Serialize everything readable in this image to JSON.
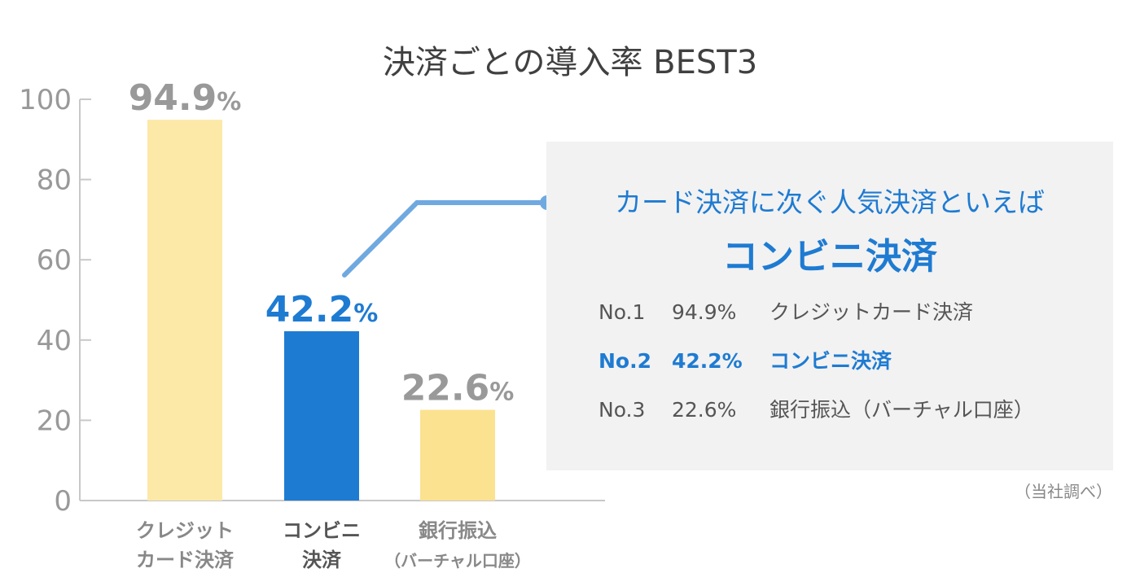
{
  "chart_data": {
    "type": "bar",
    "title": "決済ごとの導入率 BEST3",
    "categories": [
      [
        "クレジット",
        "カード決済"
      ],
      [
        "コンビニ",
        "決済"
      ],
      [
        "銀行振込",
        "（バーチャル口座）"
      ]
    ],
    "values": [
      94.9,
      42.2,
      22.6
    ],
    "value_labels": [
      "94.9",
      "42.2",
      "22.6"
    ],
    "value_unit": "%",
    "ylim": [
      0,
      100
    ],
    "yticks": [
      0,
      20,
      40,
      60,
      80,
      100
    ],
    "bar_colors": [
      "#fce9a8",
      "#1e7bd2",
      "#fbe290"
    ],
    "label_colors": [
      "#999999",
      "#1e7bd2",
      "#999999"
    ],
    "category_label_colors": [
      "#888888",
      "#555555",
      "#888888"
    ],
    "highlight_index": 1,
    "grid": false,
    "xlabel": "",
    "ylabel": ""
  },
  "callout": {
    "lead": "カード決済に次ぐ人気決済といえば",
    "headline": "コンビニ決済",
    "ranking": [
      {
        "rank": "No.1",
        "percent": "94.9%",
        "name": "クレジットカード決済"
      },
      {
        "rank": "No.2",
        "percent": "42.2%",
        "name": "コンビニ決済"
      },
      {
        "rank": "No.3",
        "percent": "22.6%",
        "name": "銀行振込（バーチャル口座）"
      }
    ],
    "line_color": "#6fa9e0",
    "accent_color": "#1e7bd2"
  },
  "source_note": "（当社調べ）"
}
